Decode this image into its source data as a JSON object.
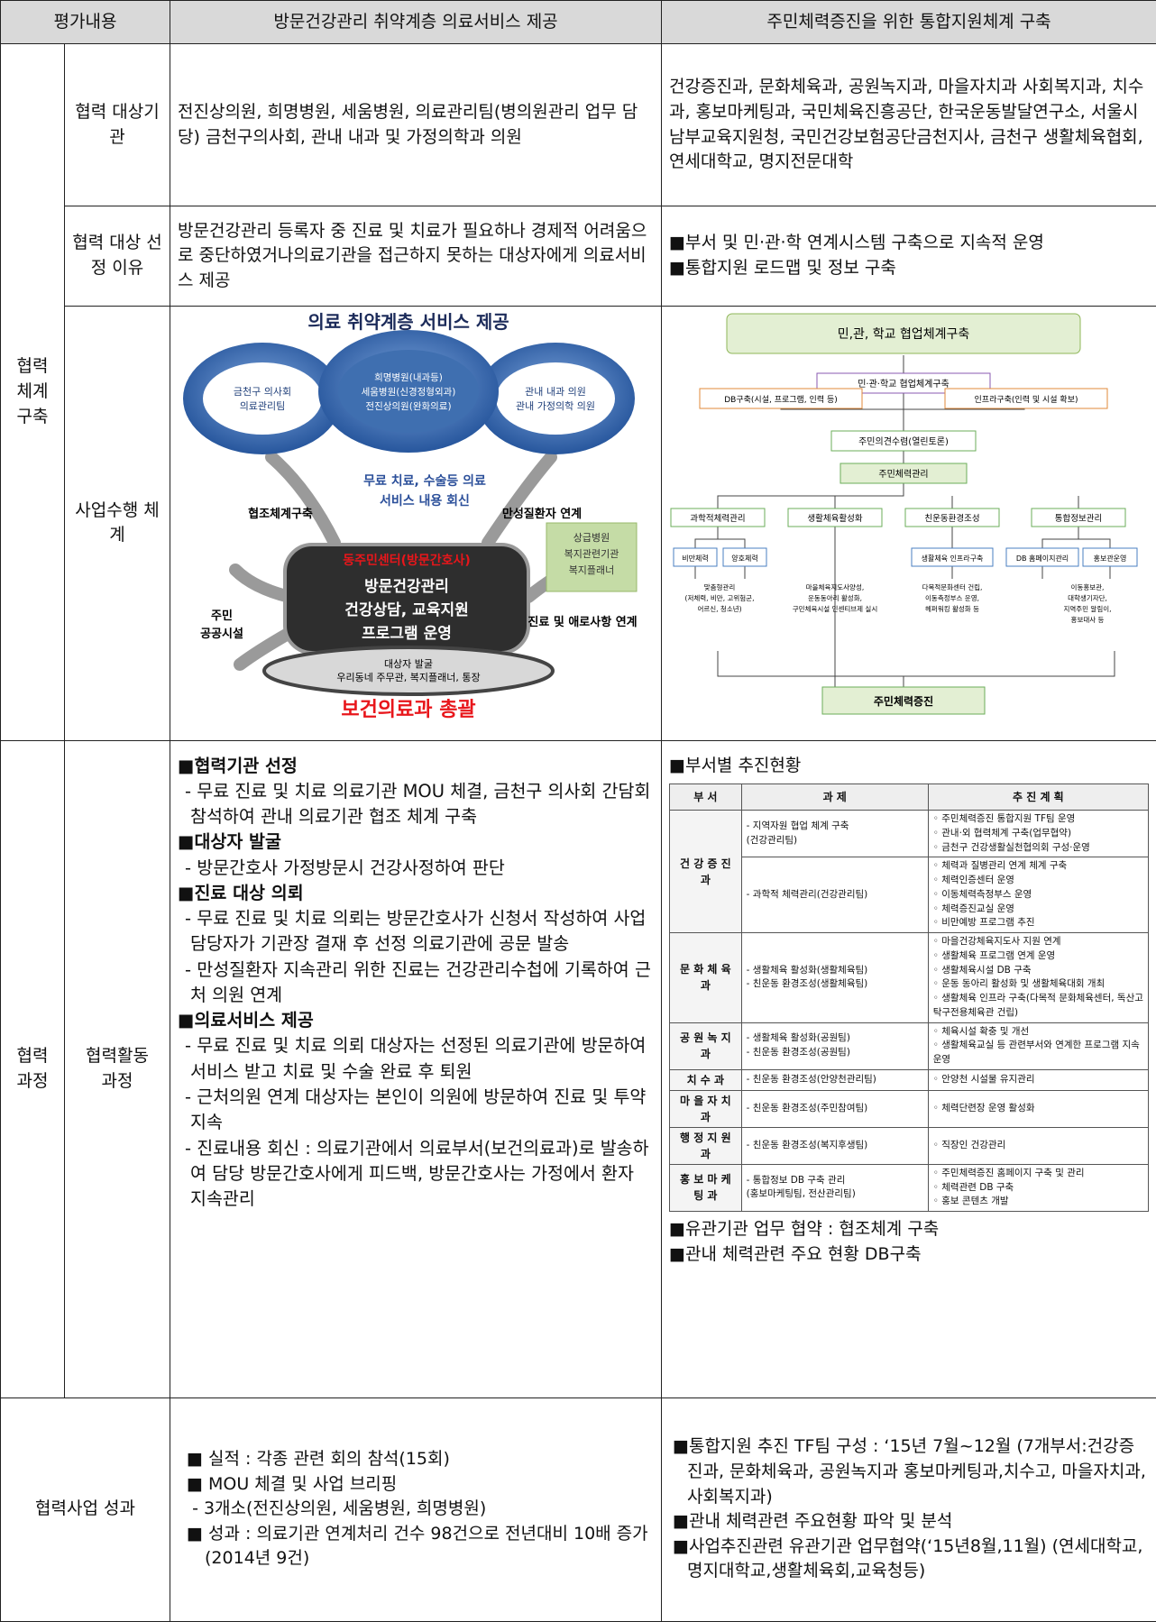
{
  "header": {
    "cols": [
      "평가내용",
      "방문건강관리 취약계층 의료서비스 제공",
      "주민체력증진을 위한 통합지원체계 구축"
    ]
  },
  "system": {
    "label": "협력 체계 구축",
    "rows": [
      {
        "label": "협력 대상기관",
        "left": "전진상의원, 희명병원, 세움병원, 의료관리팀(병의원관리 업무 담당) 금천구의사회, 관내 내과 및 가정의학과 의원",
        "right": "건강증진과, 문화체육과, 공원녹지과, 마을자치과 사회복지과, 치수과, 홍보마케팅과, 국민체육진흥공단, 한국운동발달연구소, 서울시남부교육지원청, 국민건강보험공단금천지사, 금천구 생활체육협회, 연세대학교, 명지전문대학"
      },
      {
        "label": "협력 대상 선정 이유",
        "left": "방문건강관리 등록자 중 진료 및 치료가 필요하나 경제적 어려움으로 중단하였거나의료기관을 접근하지 못하는 대상자에게 의료서비스 제공",
        "right": [
          "■부서 및 민·관·학 연계시스템 구축으로 지속적 운영",
          "■통합지원 로드맵 및 정보 구축"
        ]
      },
      {
        "label": "사업수행 체계",
        "diagram_left": {
          "title": "의료 취약계층 서비스 제공",
          "circles": [
            [
              "금천구 의사회",
              "의료관리팀"
            ],
            [
              "희명병원(내과등)",
              "세움병원(신경정형외과)",
              "전진상의원(완화의료)"
            ],
            [
              "관내 내과 의원",
              "관내 가정의학 의원"
            ]
          ],
          "reply": [
            "무료 치료, 수술등 의료",
            "서비스 내용 회신"
          ],
          "coop": "협조체계구축",
          "chronic": "만성질환자 연계",
          "resident": [
            "주민",
            "공공시설"
          ],
          "center_head": "동주민센터(방문간호사)",
          "center_body": [
            "방문건강관리",
            "건강상담, 교육지원",
            "프로그램 운영"
          ],
          "side": [
            "상급병원",
            "복지관련기관",
            "복지플래너"
          ],
          "link": "진료 및 애로사항 연계",
          "find": [
            "대상자 발굴",
            "우리동네 주무관, 복지플래너, 통장"
          ],
          "footer": "보건의료과 총괄"
        },
        "diagram_right": {
          "top": "민,관, 학교 협업체계구축",
          "level": "민·관·학교 협업체계구축",
          "db": "DB구축(시설, 프로그램, 인력 등)",
          "infra": "인프라구축(인력 및 시설 확보)",
          "opinion": "주민의견수렴(열린토론)",
          "manage": "주민체력관리",
          "branches": [
            "과학적체력관리",
            "생활체육활성화",
            "친운동환경조성",
            "통합정보관리"
          ],
          "subs": [
            "비만체력",
            "양호체력",
            "생활체육 인프라구축",
            "DB 홈페이지관리",
            "홍보관운영"
          ],
          "details": [
            [
              "맞춤형관리",
              "(저체력, 비만, 고위험군,",
              "어르신, 청소년)"
            ],
            [
              "마을체육지도사양성,",
              "운동동아리 활성화,",
              "구민체육시설 인센티브제 실시"
            ],
            [
              "다목적문화센터 건립,",
              "이동측정부스 운영,",
              "헤퍼워킹 활성화 등"
            ],
            [
              "이동홍보관,",
              "대학생기자단,",
              "지역주민 알림이,",
              "홍보대사 등"
            ]
          ],
          "bottom": "주민체력증진"
        }
      }
    ]
  },
  "process": {
    "label": "협력 과정",
    "sub": "협력활동 과정",
    "left": [
      {
        "h": "■협력기관 선정",
        "lines": [
          "- 무료 진료 및 치료 의료기관 MOU 체결, 금천구 의사회 간담회 참석하여 관내 의료기관 협조 체계 구축"
        ]
      },
      {
        "h": "■대상자 발굴",
        "lines": [
          "- 방문간호사 가정방문시 건강사정하여 판단"
        ]
      },
      {
        "h": "■진료 대상 의뢰",
        "lines": [
          "- 무료 진료 및 치료 의뢰는 방문간호사가 신청서 작성하여 사업담당자가 기관장 결재 후 선정 의료기관에 공문 발송",
          "- 만성질환자 지속관리 위한 진료는 건강관리수첩에 기록하여 근처 의원 연계"
        ]
      },
      {
        "h": "■의료서비스 제공",
        "lines": [
          "- 무료 진료 및 치료 의뢰 대상자는 선정된 의료기관에 방문하여 서비스 받고 치료 및 수술 완료 후 퇴원",
          "- 근처의원 연계 대상자는 본인이 의원에 방문하여 진료 및 투약 지속",
          "- 진료내용 회신 : 의료기관에서 의료부서(보건의료과)로 발송하여 담당 방문간호사에게 피드백, 방문간호사는 가정에서 환자 지속관리"
        ]
      }
    ],
    "right": {
      "heading": "■부서별 추진현황",
      "table": {
        "header": [
          "부 서",
          "과 제",
          "추 진 계 획"
        ],
        "rows": [
          {
            "dept": "건 강 증 진 과",
            "subrows": [
              {
                "tasks": [
                  "- 지역자원 협업 체계 구축",
                  "(건강관리팀)"
                ],
                "plans": [
                  "◦ 주민체력증진 통합지원 TF팀 운영",
                  "◦ 관내·외 협력체계 구축(업무협약)",
                  "◦ 금천구 건강생활실천협의회 구성·운영"
                ]
              },
              {
                "tasks": [
                  "- 과학적 체력관리(건강관리팀)"
                ],
                "plans": [
                  "◦ 체력과 질병관리 연계 체계 구축",
                  "◦ 체력인증센터 운영",
                  "◦ 이동체력측정부스 운영",
                  "◦ 체력증진교실 운영",
                  "◦ 비만예방 프로그램 추진"
                ]
              }
            ]
          },
          {
            "dept": "문 화 체 육 과",
            "subrows": [
              {
                "tasks": [
                  "- 생활체육 활성화(생활체육팀)",
                  "- 친운동 환경조성(생활체육팀)"
                ],
                "plans": [
                  "◦ 마을건강체육지도사 지원 연계",
                  "◦ 생활체육 프로그램 연계 운영",
                  "◦ 생활체육시설 DB 구축",
                  "◦ 운동 동아리 활성화 및 생활체육대회 개최",
                  "◦ 생활체육 인프라 구축(다목적 문화체육센터, 독산고 탁구전용체육관 건립)"
                ]
              }
            ]
          },
          {
            "dept": "공 원 녹 지 과",
            "subrows": [
              {
                "tasks": [
                  "- 생활체육 활성화(공원팀)",
                  "- 친운동 환경조성(공원팀)"
                ],
                "plans": [
                  "◦ 체육시설 확충 및 개선",
                  "◦ 생활체육교실 등 관련부서와 연계한 프로그램 지속 운영"
                ]
              }
            ]
          },
          {
            "dept": "치 수 과",
            "subrows": [
              {
                "tasks": [
                  "- 친운동 환경조성(안양천관리팀)"
                ],
                "plans": [
                  "◦ 안양천 시설물 유지관리"
                ]
              }
            ]
          },
          {
            "dept": "마 을 자 치 과",
            "subrows": [
              {
                "tasks": [
                  "- 친운동 환경조성(주민참여팀)"
                ],
                "plans": [
                  "◦ 체력단련장 운영 활성화"
                ]
              }
            ]
          },
          {
            "dept": "행 정 지 원 과",
            "subrows": [
              {
                "tasks": [
                  "- 친운동 환경조성(복지후생팀)"
                ],
                "plans": [
                  "◦ 직장인 건강관리"
                ]
              }
            ]
          },
          {
            "dept": "홍 보 마 케 팅 과",
            "subrows": [
              {
                "tasks": [
                  "- 통합정보 DB 구축 관리",
                  "(홍보마케팅팀, 전산관리팀)"
                ],
                "plans": [
                  "◦ 주민체력증진 홈페이지 구축 및 관리",
                  "◦ 체력관련 DB 구축",
                  "◦ 홍보 콘텐츠 개발"
                ]
              }
            ]
          }
        ]
      },
      "bullets": [
        "■유관기관 업무 협약 : 협조체계 구축",
        "■관내 체력관련 주요 현황 DB구축"
      ]
    }
  },
  "result": {
    "label": "협력사업 성과",
    "left": [
      "■ 실적 : 각종 관련 회의 참석(15회)",
      "■ MOU 체결 및 사업 브리핑",
      " - 3개소(전진상의원, 세움병원, 희명병원)",
      "■ 성과 : 의료기관 연계처리 건수 98건으로 전년대비 10배 증가(2014년 9건)"
    ],
    "right": [
      "■통합지원 추진 TF팀 구성 : ‘15년 7월~12월 (7개부서:건강증진과, 문화체육과, 공원녹지과 홍보마케팅과,치수고, 마을자치과, 사회복지과)",
      "■관내 체력관련 주요현황 파악 및 분석",
      "■사업추진관련 유관기관 업무협약(‘15년8월,11월) (연세대학교,명지대학교,생활체육회,교육청등)"
    ]
  }
}
